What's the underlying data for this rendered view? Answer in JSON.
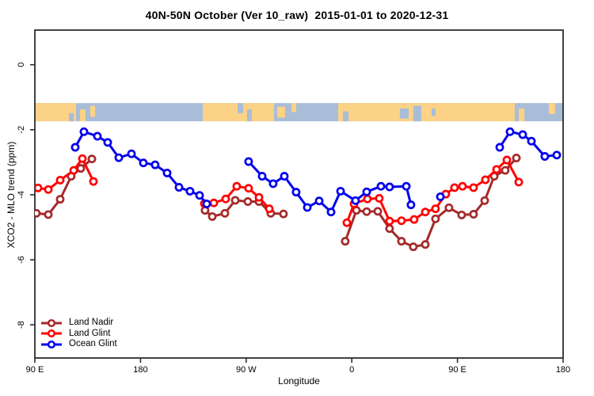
{
  "title": "40N-50N October (Ver 10_raw)  2015-01-01 to 2020-12-31",
  "chart_data": {
    "type": "line",
    "title": "40N-50N October (Ver 10_raw)  2015-01-01 to 2020-12-31",
    "xlabel": "Longitude",
    "ylabel": "XCO2 - MLO trend (ppm)",
    "grid": false,
    "legend_position": "bottom-left",
    "x_axis_note": "longitude axis wraps from 90E eastward through 180, 90W, 0, 90E to 180 (450 degrees total)",
    "x_range_deg": [
      90,
      540
    ],
    "y_range_ppm": [
      -9.0,
      1.05
    ],
    "x_ticks": [
      {
        "deg": 90,
        "label": "90 E"
      },
      {
        "deg": 180,
        "label": "180"
      },
      {
        "deg": 270,
        "label": "90 W"
      },
      {
        "deg": 360,
        "label": "0"
      },
      {
        "deg": 450,
        "label": "90 E"
      },
      {
        "deg": 540,
        "label": "180"
      }
    ],
    "y_ticks": [
      {
        "value": 0,
        "label": "0"
      },
      {
        "value": -2,
        "label": "-2"
      },
      {
        "value": -4,
        "label": "-4"
      },
      {
        "value": -6,
        "label": "-6"
      },
      {
        "value": -8,
        "label": "-8"
      }
    ],
    "map_band": {
      "description": "land/ocean strip for the 40N-50N latitude band",
      "top_ppm": -1.18,
      "bottom_ppm": -1.74,
      "ocean_color": "#A8BDD8",
      "land_color": "#FBD286",
      "segments": [
        {
          "from": 90.0,
          "to": 125.1,
          "fill": "land",
          "top": 0,
          "bottom": 1
        },
        {
          "from": 119.0,
          "to": 123.1,
          "fill": "ocean",
          "top": 0.55,
          "bottom": 1
        },
        {
          "from": 128.4,
          "to": 133.2,
          "fill": "land",
          "top": 0.35,
          "bottom": 1
        },
        {
          "from": 137.2,
          "to": 141.3,
          "fill": "land",
          "top": 0.15,
          "bottom": 0.75
        },
        {
          "from": 233.0,
          "to": 293.7,
          "fill": "land",
          "top": 0,
          "bottom": 1
        },
        {
          "from": 262.7,
          "to": 267.4,
          "fill": "ocean",
          "top": 0,
          "bottom": 0.55
        },
        {
          "from": 270.8,
          "to": 274.8,
          "fill": "ocean",
          "top": 0.35,
          "bottom": 1
        },
        {
          "from": 296.4,
          "to": 303.2,
          "fill": "land",
          "top": 0.2,
          "bottom": 0.8
        },
        {
          "from": 308.6,
          "to": 312.6,
          "fill": "land",
          "top": 0,
          "bottom": 0.5
        },
        {
          "from": 348.4,
          "to": 498.8,
          "fill": "land",
          "top": 0,
          "bottom": 1
        },
        {
          "from": 352.4,
          "to": 357.2,
          "fill": "ocean",
          "top": 0.45,
          "bottom": 1
        },
        {
          "from": 400.9,
          "to": 408.4,
          "fill": "ocean",
          "top": 0.3,
          "bottom": 0.85
        },
        {
          "from": 412.4,
          "to": 419.2,
          "fill": "ocean",
          "top": 0.15,
          "bottom": 1
        },
        {
          "from": 428.0,
          "to": 431.3,
          "fill": "ocean",
          "top": 0.3,
          "bottom": 0.7
        },
        {
          "from": 502.2,
          "to": 507.0,
          "fill": "land",
          "top": 0.3,
          "bottom": 1
        },
        {
          "from": 527.8,
          "to": 533.2,
          "fill": "land",
          "top": 0,
          "bottom": 0.6
        }
      ]
    },
    "series": [
      {
        "name": "Land Nadir",
        "color": "#A52A2A",
        "marker": "open-circle",
        "segments": [
          [
            [
              91.3,
              -4.57
            ],
            [
              101.5,
              -4.61
            ],
            [
              111.6,
              -4.14
            ],
            [
              121.0,
              -3.43
            ],
            [
              129.1,
              -3.19
            ],
            [
              138.6,
              -2.9
            ]
          ],
          [
            [
              235.0,
              -4.48
            ],
            [
              241.1,
              -4.67
            ],
            [
              251.9,
              -4.57
            ],
            [
              260.7,
              -4.17
            ],
            [
              271.5,
              -4.21
            ],
            [
              280.9,
              -4.21
            ],
            [
              291.0,
              -4.57
            ],
            [
              301.8,
              -4.59
            ]
          ],
          [
            [
              354.4,
              -5.43
            ],
            [
              363.9,
              -4.48
            ],
            [
              372.7,
              -4.52
            ],
            [
              382.1,
              -4.51
            ],
            [
              392.2,
              -5.04
            ],
            [
              402.3,
              -5.43
            ],
            [
              412.4,
              -5.6
            ],
            [
              422.6,
              -5.53
            ],
            [
              431.3,
              -4.74
            ],
            [
              442.8,
              -4.4
            ],
            [
              453.6,
              -4.62
            ],
            [
              463.7,
              -4.6
            ],
            [
              473.2,
              -4.18
            ],
            [
              481.3,
              -3.43
            ],
            [
              490.7,
              -3.25
            ],
            [
              500.2,
              -2.87
            ]
          ]
        ]
      },
      {
        "name": "Land Glint",
        "color": "#FF0000",
        "marker": "open-circle",
        "segments": [
          [
            [
              92.7,
              -3.79
            ],
            [
              101.5,
              -3.84
            ],
            [
              111.6,
              -3.55
            ],
            [
              123.1,
              -3.25
            ],
            [
              130.5,
              -2.89
            ],
            [
              139.9,
              -3.59
            ]
          ],
          [
            [
              234.4,
              -4.27
            ],
            [
              242.5,
              -4.25
            ],
            [
              252.6,
              -4.13
            ],
            [
              262.0,
              -3.74
            ],
            [
              272.1,
              -3.8
            ],
            [
              280.9,
              -4.08
            ],
            [
              289.7,
              -4.43
            ]
          ],
          [
            [
              355.8,
              -4.86
            ],
            [
              361.9,
              -4.28
            ],
            [
              373.3,
              -4.13
            ],
            [
              383.4,
              -4.11
            ],
            [
              392.2,
              -4.81
            ],
            [
              402.3,
              -4.8
            ],
            [
              413.1,
              -4.76
            ],
            [
              422.6,
              -4.53
            ],
            [
              431.3,
              -4.43
            ],
            [
              440.1,
              -3.98
            ],
            [
              447.5,
              -3.78
            ],
            [
              454.3,
              -3.74
            ],
            [
              463.7,
              -3.78
            ],
            [
              473.8,
              -3.54
            ],
            [
              483.3,
              -3.22
            ],
            [
              492.1,
              -2.93
            ],
            [
              502.2,
              -3.61
            ]
          ]
        ]
      },
      {
        "name": "Ocean Glint",
        "color": "#0000EE",
        "marker": "open-circle",
        "segments": [
          [
            [
              124.4,
              -2.54
            ],
            [
              131.8,
              -2.06
            ],
            [
              143.3,
              -2.2
            ],
            [
              152.1,
              -2.39
            ],
            [
              161.5,
              -2.86
            ],
            [
              172.3,
              -2.74
            ],
            [
              182.4,
              -3.02
            ],
            [
              192.5,
              -3.08
            ],
            [
              202.7,
              -3.33
            ],
            [
              212.8,
              -3.77
            ],
            [
              222.2,
              -3.89
            ],
            [
              230.3,
              -4.02
            ],
            [
              236.4,
              -4.28
            ]
          ],
          [
            [
              272.1,
              -2.98
            ],
            [
              283.6,
              -3.43
            ],
            [
              293.0,
              -3.66
            ],
            [
              302.5,
              -3.43
            ],
            [
              312.6,
              -3.92
            ],
            [
              322.1,
              -4.39
            ],
            [
              332.2,
              -4.19
            ],
            [
              342.3,
              -4.53
            ],
            [
              350.4,
              -3.89
            ],
            [
              363.2,
              -4.18
            ],
            [
              372.7,
              -3.91
            ],
            [
              384.8,
              -3.74
            ],
            [
              392.2,
              -3.76
            ],
            [
              406.4,
              -3.74
            ],
            [
              410.4,
              -4.31
            ]
          ],
          [
            [
              435.4,
              -4.06
            ]
          ],
          [
            [
              486.0,
              -2.54
            ],
            [
              494.8,
              -2.06
            ],
            [
              505.6,
              -2.15
            ],
            [
              513.0,
              -2.35
            ],
            [
              524.4,
              -2.82
            ],
            [
              534.6,
              -2.78
            ]
          ]
        ]
      }
    ]
  },
  "legend": {
    "items": [
      {
        "label": "Land Nadir"
      },
      {
        "label": "Land Glint"
      },
      {
        "label": "Ocean Glint"
      }
    ]
  },
  "style": {
    "axis_color": "#2E2E2E",
    "text_color": "#000000",
    "background": "#FFFFFF"
  }
}
